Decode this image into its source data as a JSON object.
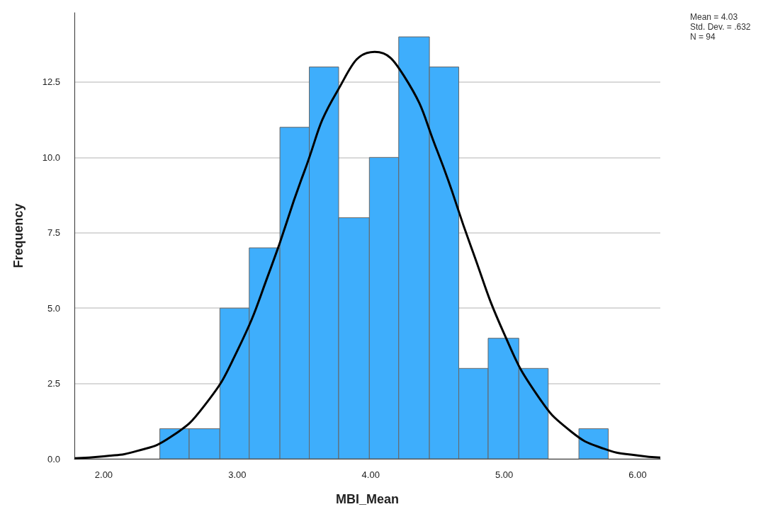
{
  "chart_data": {
    "type": "histogram",
    "xlabel": "MBI_Mean",
    "ylabel": "Frequency",
    "bins": [
      2.42,
      2.64,
      2.87,
      3.09,
      3.32,
      3.54,
      3.76,
      3.99,
      4.21,
      4.44,
      4.66,
      4.88,
      5.11,
      5.33,
      5.56,
      5.78
    ],
    "values": [
      1,
      1,
      5,
      7,
      11,
      13,
      8,
      10,
      14,
      13,
      3,
      4,
      3,
      0,
      1
    ],
    "color": "#3eaefc",
    "series": [
      {
        "type": "line",
        "color": "#000000",
        "x": [
          1.78,
          2.0,
          2.25,
          2.5,
          2.75,
          3.0,
          3.25,
          3.5,
          3.75,
          4.03,
          4.25,
          4.5,
          4.75,
          5.0,
          5.25,
          5.5,
          5.75,
          6.0,
          6.17
        ],
        "values": [
          0.02,
          0.08,
          0.26,
          0.72,
          1.74,
          3.58,
          6.31,
          9.5,
          12.2,
          13.5,
          12.7,
          10.2,
          7.06,
          4.15,
          2.1,
          0.91,
          0.33,
          0.11,
          0.04
        ]
      }
    ],
    "xlim": [
      1.78,
      6.17
    ],
    "xticks": [
      {
        "value": 2,
        "label": "2.00"
      },
      {
        "value": 3,
        "label": "3.00"
      },
      {
        "value": 4,
        "label": "4.00"
      },
      {
        "value": 5,
        "label": "5.00"
      },
      {
        "value": 6,
        "label": "6.00"
      }
    ],
    "ylim": [
      0,
      14.8
    ],
    "yticks": [
      {
        "value": 0,
        "label": "0.0"
      },
      {
        "value": 2.5,
        "label": "2.5"
      },
      {
        "value": 5,
        "label": "5.0"
      },
      {
        "value": 7.5,
        "label": "7.5"
      },
      {
        "value": 10,
        "label": "10.0"
      },
      {
        "value": 12.5,
        "label": "12.5"
      }
    ],
    "grid": "y",
    "annotations": [
      "Mean = 4.03",
      "Std. Dev. = .632",
      "N = 94"
    ]
  }
}
